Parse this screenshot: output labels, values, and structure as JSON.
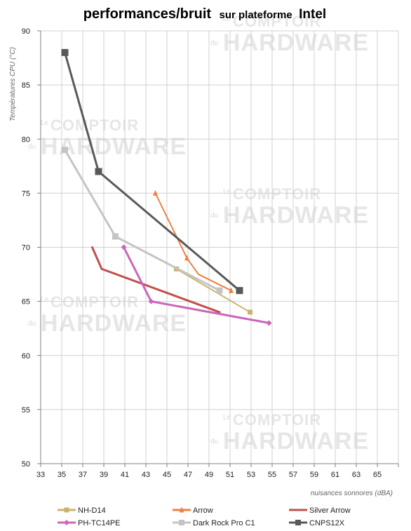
{
  "title": {
    "main": "performances/bruit",
    "sub": "sur plateforme",
    "brand": "Intel"
  },
  "watermark": {
    "small": "Le",
    "mid": "COMPTOIR",
    "du": "du",
    "big": "HARDWARE"
  },
  "colors": {
    "grid": "#d0d0d0",
    "axis": "#808080",
    "background": "#ffffff"
  },
  "chart_data": {
    "type": "line",
    "xlabel": "nuisances sonnores (dBA)",
    "ylabel": "Températures CPU (°C)",
    "xlim": [
      33,
      67
    ],
    "ylim": [
      50,
      90
    ],
    "x_ticks": [
      33,
      35,
      37,
      39,
      41,
      43,
      45,
      47,
      49,
      51,
      53,
      55,
      57,
      59,
      61,
      63,
      65
    ],
    "y_ticks": [
      50,
      55,
      60,
      65,
      70,
      75,
      80,
      85,
      90
    ],
    "grid": true,
    "legend_position": "bottom",
    "series": [
      {
        "name": "NH-D14",
        "color": "#c8b46e",
        "marker": "square",
        "marker_size": 7,
        "line_width": 2,
        "x": [
          45.9,
          52.9
        ],
        "y": [
          68,
          64
        ]
      },
      {
        "name": "Arrow",
        "color": "#ee8040",
        "marker": "triangle",
        "marker_size": 7,
        "line_width": 2,
        "x": [
          43.9,
          46.9,
          48.0,
          51.1
        ],
        "y": [
          75,
          69,
          67.5,
          66
        ]
      },
      {
        "name": "Silver Arrow",
        "color": "#c0504d",
        "marker": "none",
        "marker_size": 0,
        "line_width": 3,
        "x": [
          37.9,
          38.8,
          50.0
        ],
        "y": [
          70,
          68,
          64
        ]
      },
      {
        "name": "PH-TC14PE",
        "color": "#cc66bb",
        "marker": "diamond",
        "marker_size": 8,
        "line_width": 3,
        "x": [
          40.9,
          43.5,
          54.7
        ],
        "y": [
          70,
          65,
          63
        ]
      },
      {
        "name": "Dark Rock Pro C1",
        "color": "#c4c4c4",
        "marker": "square",
        "marker_size": 9,
        "line_width": 3,
        "x": [
          35.3,
          40.1,
          50.0
        ],
        "y": [
          79,
          71,
          66
        ]
      },
      {
        "name": "CNPS12X",
        "color": "#595959",
        "marker": "square",
        "marker_size": 10,
        "line_width": 3,
        "x": [
          35.3,
          38.5,
          51.9
        ],
        "y": [
          88,
          77,
          66
        ]
      }
    ]
  }
}
